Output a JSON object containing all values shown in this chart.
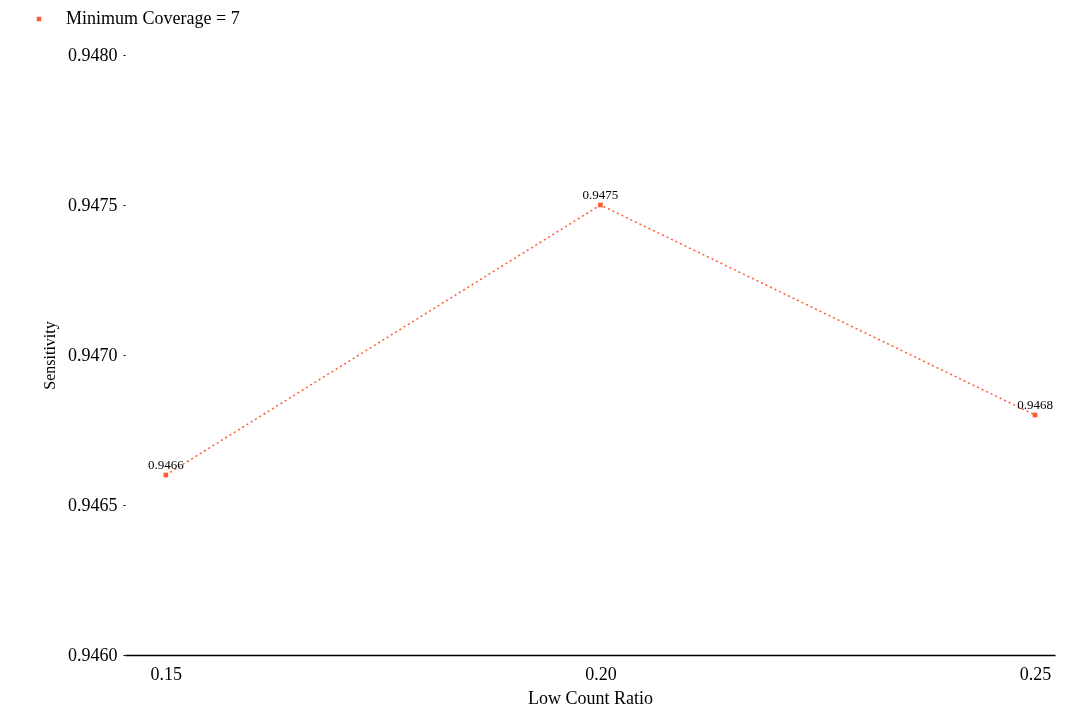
{
  "chart_data": {
    "type": "line",
    "xlabel": "Low Count Ratio",
    "ylabel": "Sensitivity",
    "x": [
      0.15,
      0.2,
      0.25
    ],
    "series": [
      {
        "name": "Minimum Coverage = 7",
        "color": "#ff5a36",
        "values": [
          0.9466,
          0.9475,
          0.9468
        ]
      }
    ],
    "xlim": [
      0.1453,
      0.2523
    ],
    "xticks": [
      0.15,
      {
        "value": 0.2,
        "label": "0.20"
      },
      0.25
    ],
    "ylim": [
      0.946,
      0.948
    ],
    "yticks": [
      {
        "value": 0.946,
        "label": "0.9460"
      },
      0.9465,
      {
        "value": 0.947,
        "label": "0.9470"
      },
      0.9475,
      {
        "value": 0.948,
        "label": "0.9480"
      }
    ],
    "marker": "square",
    "line_style": "dotted",
    "data_labels": true,
    "grid": false,
    "legend": "top left"
  }
}
